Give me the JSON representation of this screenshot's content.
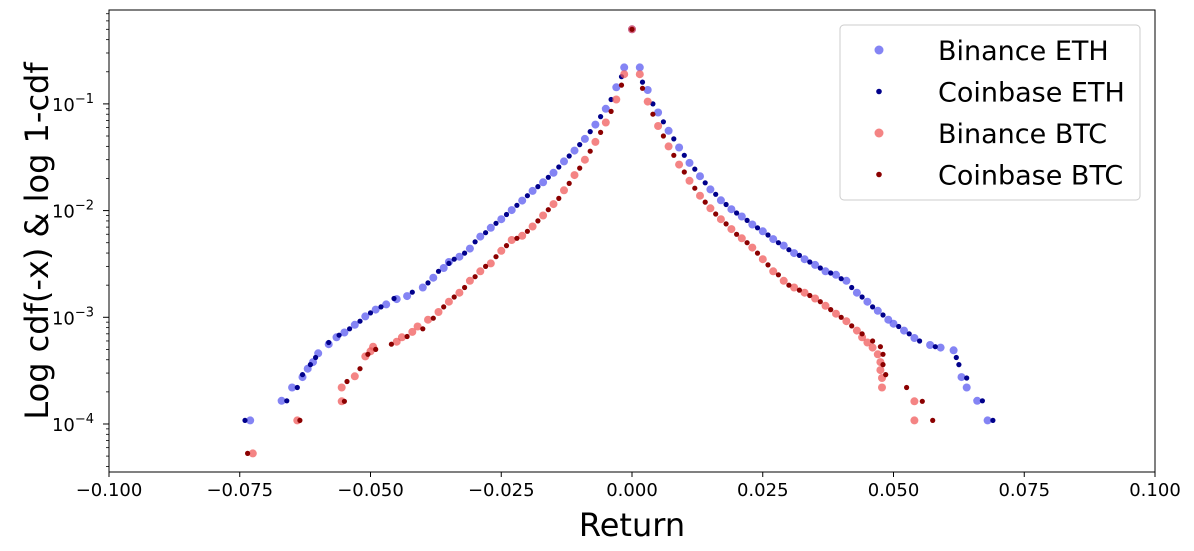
{
  "chart_data": {
    "type": "scatter",
    "xlabel": "Return",
    "ylabel": "Log cdf(-x) & log 1-cdf",
    "xlim": [
      -0.1,
      0.1
    ],
    "ylim_log10": [
      -4.45,
      -0.12
    ],
    "y_scale": "log",
    "grid": false,
    "legend_position": "top-right",
    "x_ticks": [
      {
        "value": -0.1,
        "label": "−0.100"
      },
      {
        "value": -0.075,
        "label": "−0.075"
      },
      {
        "value": -0.05,
        "label": "−0.050"
      },
      {
        "value": -0.025,
        "label": "−0.025"
      },
      {
        "value": 0.0,
        "label": "0.000"
      },
      {
        "value": 0.025,
        "label": "0.025"
      },
      {
        "value": 0.05,
        "label": "0.050"
      },
      {
        "value": 0.075,
        "label": "0.075"
      },
      {
        "value": 0.1,
        "label": "0.100"
      }
    ],
    "y_ticks": [
      {
        "exp": -4,
        "base": "10",
        "sup": "−4"
      },
      {
        "exp": -3,
        "base": "10",
        "sup": "−3"
      },
      {
        "exp": -2,
        "base": "10",
        "sup": "−2"
      },
      {
        "exp": -1,
        "base": "10",
        "sup": "−1"
      }
    ],
    "series": [
      {
        "name": "Binance ETH",
        "color": "#5b5bf0",
        "opacity": 0.75,
        "marker": "large",
        "points": [
          [
            -0.073,
            0.000108
          ],
          [
            -0.067,
            0.000165
          ],
          [
            -0.065,
            0.00022
          ],
          [
            -0.063,
            0.000275
          ],
          [
            -0.062,
            0.00033
          ],
          [
            -0.061,
            0.00038
          ],
          [
            -0.06,
            0.00046
          ],
          [
            -0.058,
            0.00056
          ],
          [
            -0.0565,
            0.00065
          ],
          [
            -0.055,
            0.00072
          ],
          [
            -0.053,
            0.00085
          ],
          [
            -0.051,
            0.00102
          ],
          [
            -0.049,
            0.00118
          ],
          [
            -0.047,
            0.00132
          ],
          [
            -0.045,
            0.00148
          ],
          [
            -0.043,
            0.00158
          ],
          [
            -0.04,
            0.0019
          ],
          [
            -0.038,
            0.00235
          ],
          [
            -0.036,
            0.0029
          ],
          [
            -0.035,
            0.0033
          ],
          [
            -0.033,
            0.0037
          ],
          [
            -0.031,
            0.0044
          ],
          [
            -0.029,
            0.0057
          ],
          [
            -0.027,
            0.0069
          ],
          [
            -0.025,
            0.0083
          ],
          [
            -0.023,
            0.0101
          ],
          [
            -0.021,
            0.0124
          ],
          [
            -0.019,
            0.0153
          ],
          [
            -0.017,
            0.0184
          ],
          [
            -0.015,
            0.0226
          ],
          [
            -0.013,
            0.0289
          ],
          [
            -0.011,
            0.0365
          ],
          [
            -0.009,
            0.047
          ],
          [
            -0.007,
            0.064
          ],
          [
            -0.005,
            0.09
          ],
          [
            -0.003,
            0.143
          ],
          [
            -0.0015,
            0.22
          ],
          [
            0.0,
            0.5
          ],
          [
            0.0015,
            0.22
          ],
          [
            0.003,
            0.135
          ],
          [
            0.005,
            0.083
          ],
          [
            0.007,
            0.056
          ],
          [
            0.009,
            0.039
          ],
          [
            0.011,
            0.028
          ],
          [
            0.013,
            0.021
          ],
          [
            0.015,
            0.0158
          ],
          [
            0.017,
            0.0125
          ],
          [
            0.019,
            0.0103
          ],
          [
            0.021,
            0.0088
          ],
          [
            0.023,
            0.0074
          ],
          [
            0.025,
            0.0064
          ],
          [
            0.027,
            0.0054
          ],
          [
            0.029,
            0.0047
          ],
          [
            0.031,
            0.004
          ],
          [
            0.033,
            0.0035
          ],
          [
            0.035,
            0.0031
          ],
          [
            0.037,
            0.0027
          ],
          [
            0.039,
            0.0025
          ],
          [
            0.041,
            0.0022
          ],
          [
            0.043,
            0.0017
          ],
          [
            0.045,
            0.0014
          ],
          [
            0.047,
            0.00115
          ],
          [
            0.049,
            0.00095
          ],
          [
            0.05,
            0.00087
          ],
          [
            0.052,
            0.00075
          ],
          [
            0.054,
            0.00064
          ],
          [
            0.057,
            0.00055
          ],
          [
            0.059,
            0.00052
          ],
          [
            0.0615,
            0.00049
          ],
          [
            0.063,
            0.000275
          ],
          [
            0.064,
            0.00022
          ],
          [
            0.066,
            0.000165
          ],
          [
            0.068,
            0.000108
          ]
        ]
      },
      {
        "name": "Coinbase ETH",
        "color": "#00008b",
        "opacity": 1.0,
        "marker": "small",
        "points": [
          [
            -0.074,
            0.000108
          ],
          [
            -0.066,
            0.000165
          ],
          [
            -0.064,
            0.00022
          ],
          [
            -0.063,
            0.00029
          ],
          [
            -0.0615,
            0.00036
          ],
          [
            -0.0605,
            0.00042
          ],
          [
            -0.058,
            0.00058
          ],
          [
            -0.056,
            0.00068
          ],
          [
            -0.054,
            0.00078
          ],
          [
            -0.052,
            0.00092
          ],
          [
            -0.05,
            0.0011
          ],
          [
            -0.048,
            0.00125
          ],
          [
            -0.0455,
            0.0015
          ],
          [
            -0.042,
            0.00172
          ],
          [
            -0.039,
            0.0021
          ],
          [
            -0.037,
            0.0027
          ],
          [
            -0.035,
            0.0032
          ],
          [
            -0.034,
            0.0035
          ],
          [
            -0.032,
            0.004
          ],
          [
            -0.03,
            0.0051
          ],
          [
            -0.028,
            0.0062
          ],
          [
            -0.026,
            0.0076
          ],
          [
            -0.024,
            0.0092
          ],
          [
            -0.022,
            0.0112
          ],
          [
            -0.02,
            0.0138
          ],
          [
            -0.018,
            0.0168
          ],
          [
            -0.016,
            0.0205
          ],
          [
            -0.014,
            0.0256
          ],
          [
            -0.012,
            0.0325
          ],
          [
            -0.01,
            0.0415
          ],
          [
            -0.008,
            0.055
          ],
          [
            -0.006,
            0.076
          ],
          [
            -0.004,
            0.11
          ],
          [
            -0.002,
            0.18
          ],
          [
            0.0,
            0.5
          ],
          [
            0.002,
            0.16
          ],
          [
            0.004,
            0.1
          ],
          [
            0.006,
            0.068
          ],
          [
            0.008,
            0.047
          ],
          [
            0.01,
            0.033
          ],
          [
            0.012,
            0.0245
          ],
          [
            0.014,
            0.0182
          ],
          [
            0.016,
            0.0142
          ],
          [
            0.018,
            0.0114
          ],
          [
            0.02,
            0.0095
          ],
          [
            0.022,
            0.0081
          ],
          [
            0.024,
            0.0069
          ],
          [
            0.026,
            0.0059
          ],
          [
            0.028,
            0.005
          ],
          [
            0.03,
            0.0043
          ],
          [
            0.032,
            0.0038
          ],
          [
            0.034,
            0.0033
          ],
          [
            0.036,
            0.0029
          ],
          [
            0.038,
            0.0026
          ],
          [
            0.04,
            0.0023
          ],
          [
            0.042,
            0.0019
          ],
          [
            0.044,
            0.00155
          ],
          [
            0.046,
            0.00125
          ],
          [
            0.048,
            0.00105
          ],
          [
            0.051,
            0.00082
          ],
          [
            0.053,
            0.0007
          ],
          [
            0.055,
            0.0006
          ],
          [
            0.058,
            0.00053
          ],
          [
            0.062,
            0.00042
          ],
          [
            0.0625,
            0.00036
          ],
          [
            0.064,
            0.00027
          ],
          [
            0.067,
            0.000165
          ],
          [
            0.069,
            0.000108
          ]
        ]
      },
      {
        "name": "Binance BTC",
        "color": "#f05b5b",
        "opacity": 0.75,
        "marker": "large",
        "points": [
          [
            -0.0725,
            5.3e-05
          ],
          [
            -0.064,
            0.000108
          ],
          [
            -0.0555,
            0.000163
          ],
          [
            -0.0555,
            0.00022
          ],
          [
            -0.053,
            0.00028
          ],
          [
            -0.051,
            0.00043
          ],
          [
            -0.05,
            0.00048
          ],
          [
            -0.0495,
            0.00053
          ],
          [
            -0.045,
            0.00059
          ],
          [
            -0.044,
            0.00065
          ],
          [
            -0.042,
            0.00073
          ],
          [
            -0.041,
            0.00082
          ],
          [
            -0.039,
            0.00095
          ],
          [
            -0.037,
            0.00112
          ],
          [
            -0.035,
            0.0014
          ],
          [
            -0.033,
            0.0017
          ],
          [
            -0.031,
            0.0022
          ],
          [
            -0.029,
            0.0027
          ],
          [
            -0.027,
            0.0032
          ],
          [
            -0.025,
            0.0042
          ],
          [
            -0.023,
            0.0053
          ],
          [
            -0.021,
            0.0058
          ],
          [
            -0.019,
            0.0071
          ],
          [
            -0.017,
            0.009
          ],
          [
            -0.015,
            0.0115
          ],
          [
            -0.013,
            0.0155
          ],
          [
            -0.011,
            0.0215
          ],
          [
            -0.009,
            0.03
          ],
          [
            -0.007,
            0.044
          ],
          [
            -0.005,
            0.067
          ],
          [
            -0.003,
            0.11
          ],
          [
            -0.0015,
            0.19
          ],
          [
            0.0,
            0.5
          ],
          [
            0.0015,
            0.19
          ],
          [
            0.003,
            0.105
          ],
          [
            0.005,
            0.062
          ],
          [
            0.007,
            0.04
          ],
          [
            0.009,
            0.027
          ],
          [
            0.011,
            0.019
          ],
          [
            0.013,
            0.0138
          ],
          [
            0.015,
            0.0105
          ],
          [
            0.017,
            0.0083
          ],
          [
            0.019,
            0.0067
          ],
          [
            0.021,
            0.0055
          ],
          [
            0.023,
            0.0045
          ],
          [
            0.025,
            0.0035
          ],
          [
            0.027,
            0.0027
          ],
          [
            0.029,
            0.0022
          ],
          [
            0.031,
            0.0019
          ],
          [
            0.033,
            0.0017
          ],
          [
            0.035,
            0.0015
          ],
          [
            0.037,
            0.00128
          ],
          [
            0.039,
            0.00108
          ],
          [
            0.041,
            0.00092
          ],
          [
            0.043,
            0.00075
          ],
          [
            0.044,
            0.00065
          ],
          [
            0.045,
            0.00058
          ],
          [
            0.046,
            0.00052
          ],
          [
            0.047,
            0.00045
          ],
          [
            0.0475,
            0.00038
          ],
          [
            0.0475,
            0.00032
          ],
          [
            0.0478,
            0.00027
          ],
          [
            0.0478,
            0.00022
          ],
          [
            0.054,
            0.000163
          ],
          [
            0.054,
            0.000108
          ]
        ]
      },
      {
        "name": "Coinbase BTC",
        "color": "#8b0000",
        "opacity": 1.0,
        "marker": "small",
        "points": [
          [
            -0.0735,
            5.3e-05
          ],
          [
            -0.0635,
            0.000108
          ],
          [
            -0.055,
            0.000163
          ],
          [
            -0.0545,
            0.00025
          ],
          [
            -0.052,
            0.00033
          ],
          [
            -0.0505,
            0.00045
          ],
          [
            -0.049,
            0.0005
          ],
          [
            -0.046,
            0.00056
          ],
          [
            -0.043,
            0.00066
          ],
          [
            -0.04,
            0.00078
          ],
          [
            -0.038,
            0.00098
          ],
          [
            -0.036,
            0.00125
          ],
          [
            -0.034,
            0.00155
          ],
          [
            -0.032,
            0.0019
          ],
          [
            -0.03,
            0.0024
          ],
          [
            -0.028,
            0.003
          ],
          [
            -0.026,
            0.0037
          ],
          [
            -0.024,
            0.0047
          ],
          [
            -0.022,
            0.0055
          ],
          [
            -0.02,
            0.0064
          ],
          [
            -0.018,
            0.008
          ],
          [
            -0.016,
            0.0102
          ],
          [
            -0.014,
            0.013
          ],
          [
            -0.012,
            0.018
          ],
          [
            -0.01,
            0.025
          ],
          [
            -0.008,
            0.036
          ],
          [
            -0.006,
            0.054
          ],
          [
            -0.004,
            0.085
          ],
          [
            -0.002,
            0.15
          ],
          [
            0.0,
            0.5
          ],
          [
            0.002,
            0.14
          ],
          [
            0.004,
            0.08
          ],
          [
            0.006,
            0.05
          ],
          [
            0.008,
            0.033
          ],
          [
            0.01,
            0.023
          ],
          [
            0.012,
            0.0162
          ],
          [
            0.014,
            0.012
          ],
          [
            0.016,
            0.0093
          ],
          [
            0.018,
            0.0075
          ],
          [
            0.02,
            0.006
          ],
          [
            0.022,
            0.005
          ],
          [
            0.024,
            0.004
          ],
          [
            0.026,
            0.0031
          ],
          [
            0.028,
            0.0025
          ],
          [
            0.03,
            0.002
          ],
          [
            0.032,
            0.0018
          ],
          [
            0.034,
            0.0016
          ],
          [
            0.036,
            0.0014
          ],
          [
            0.038,
            0.00118
          ],
          [
            0.04,
            0.001
          ],
          [
            0.042,
            0.00083
          ],
          [
            0.044,
            0.0007
          ],
          [
            0.046,
            0.0006
          ],
          [
            0.0475,
            0.00053
          ],
          [
            0.048,
            0.00045
          ],
          [
            0.048,
            0.00036
          ],
          [
            0.0485,
            0.00029
          ],
          [
            0.0525,
            0.00022
          ],
          [
            0.0555,
            0.000163
          ],
          [
            0.0575,
            0.000108
          ]
        ]
      }
    ]
  }
}
